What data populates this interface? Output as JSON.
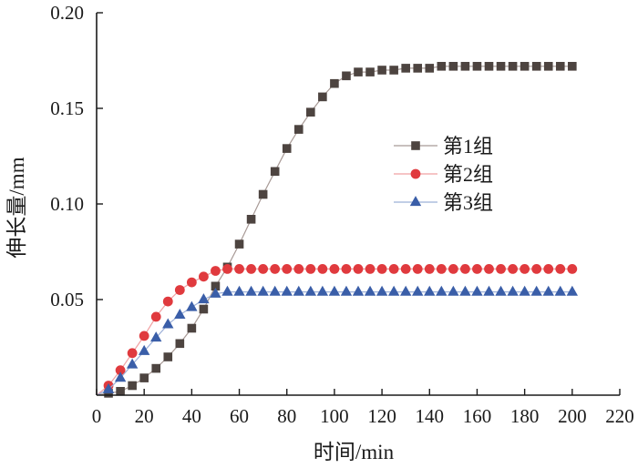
{
  "chart_data": {
    "type": "scatter",
    "xlabel": "时间/min",
    "ylabel": "伸长量/mm",
    "xlim": [
      0,
      220
    ],
    "ylim": [
      0,
      0.2
    ],
    "xticks": [
      "0",
      "20",
      "40",
      "60",
      "80",
      "100",
      "120",
      "140",
      "160",
      "180",
      "200",
      "220"
    ],
    "yticks": [
      "0.05",
      "0.10",
      "0.15",
      "0.20"
    ],
    "grid": false,
    "legend_position": "center-right",
    "series": [
      {
        "name": "第1组",
        "marker": "square",
        "color": "#4d4440",
        "line_color": "#a89a96",
        "x": [
          0,
          5,
          10,
          15,
          20,
          25,
          30,
          35,
          40,
          45,
          50,
          55,
          60,
          65,
          70,
          75,
          80,
          85,
          90,
          95,
          100,
          105,
          110,
          115,
          120,
          125,
          130,
          135,
          140,
          145,
          150,
          155,
          160,
          165,
          170,
          175,
          180,
          185,
          190,
          195,
          200
        ],
        "y": [
          0,
          0.001,
          0.002,
          0.005,
          0.009,
          0.014,
          0.02,
          0.027,
          0.035,
          0.045,
          0.057,
          0.067,
          0.079,
          0.092,
          0.105,
          0.117,
          0.129,
          0.139,
          0.148,
          0.156,
          0.163,
          0.167,
          0.169,
          0.169,
          0.17,
          0.17,
          0.171,
          0.171,
          0.171,
          0.172,
          0.172,
          0.172,
          0.172,
          0.172,
          0.172,
          0.172,
          0.172,
          0.172,
          0.172,
          0.172,
          0.172
        ]
      },
      {
        "name": "第2组",
        "marker": "circle",
        "color": "#e03a3e",
        "line_color": "#f0a0a2",
        "x": [
          0,
          5,
          10,
          15,
          20,
          25,
          30,
          35,
          40,
          45,
          50,
          55,
          60,
          65,
          70,
          75,
          80,
          85,
          90,
          95,
          100,
          105,
          110,
          115,
          120,
          125,
          130,
          135,
          140,
          145,
          150,
          155,
          160,
          165,
          170,
          175,
          180,
          185,
          190,
          195,
          200
        ],
        "y": [
          0,
          0.005,
          0.013,
          0.022,
          0.031,
          0.041,
          0.049,
          0.055,
          0.059,
          0.062,
          0.065,
          0.066,
          0.066,
          0.066,
          0.066,
          0.066,
          0.066,
          0.066,
          0.066,
          0.066,
          0.066,
          0.066,
          0.066,
          0.066,
          0.066,
          0.066,
          0.066,
          0.066,
          0.066,
          0.066,
          0.066,
          0.066,
          0.066,
          0.066,
          0.066,
          0.066,
          0.066,
          0.066,
          0.066,
          0.066,
          0.066
        ]
      },
      {
        "name": "第3组",
        "marker": "triangle",
        "color": "#3a5ea8",
        "line_color": "#9cb0d8",
        "x": [
          0,
          5,
          10,
          15,
          20,
          25,
          30,
          35,
          40,
          45,
          50,
          55,
          60,
          65,
          70,
          75,
          80,
          85,
          90,
          95,
          100,
          105,
          110,
          115,
          120,
          125,
          130,
          135,
          140,
          145,
          150,
          155,
          160,
          165,
          170,
          175,
          180,
          185,
          190,
          195,
          200
        ],
        "y": [
          0,
          0.003,
          0.009,
          0.016,
          0.023,
          0.03,
          0.037,
          0.042,
          0.046,
          0.05,
          0.053,
          0.054,
          0.054,
          0.054,
          0.054,
          0.054,
          0.054,
          0.054,
          0.054,
          0.054,
          0.054,
          0.054,
          0.054,
          0.054,
          0.054,
          0.054,
          0.054,
          0.054,
          0.054,
          0.054,
          0.054,
          0.054,
          0.054,
          0.054,
          0.054,
          0.054,
          0.054,
          0.054,
          0.054,
          0.054,
          0.054
        ]
      }
    ]
  }
}
